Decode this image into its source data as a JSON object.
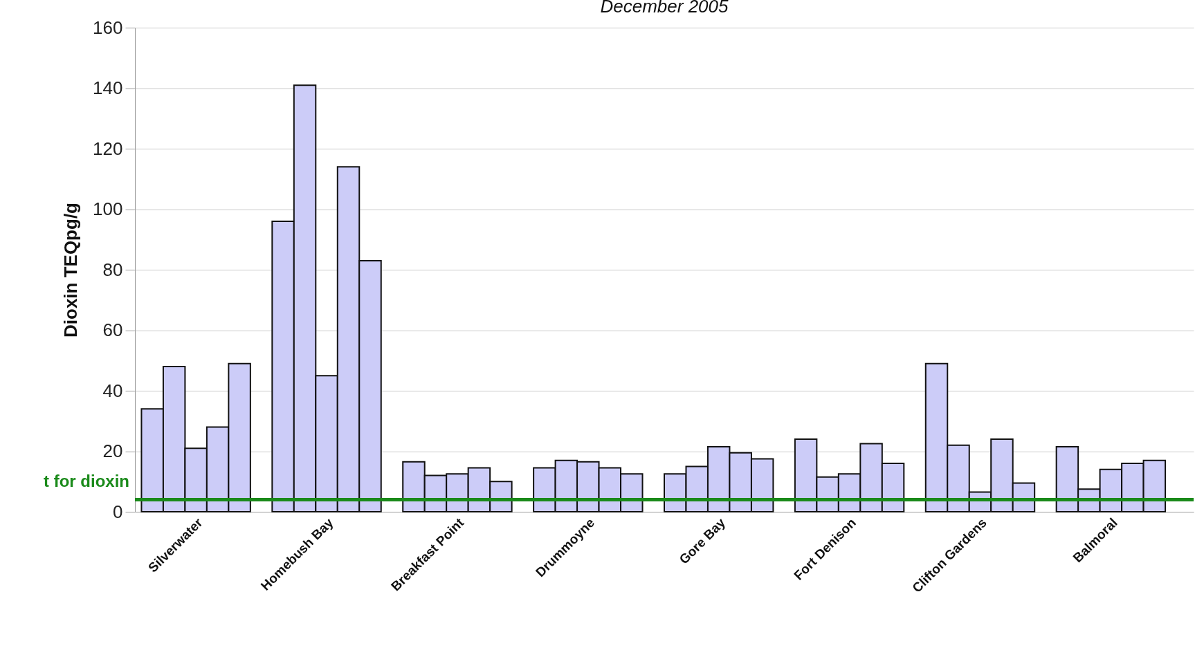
{
  "chart_data": {
    "type": "bar",
    "title": "December 2005",
    "ylabel": "Dioxin TEQpg/g",
    "categories": [
      null,
      null,
      "Silverwater",
      null,
      null,
      null,
      null,
      null,
      "Homebush Bay",
      null,
      null,
      null,
      null,
      null,
      "Breakfast Point",
      null,
      null,
      null,
      null,
      null,
      "Drummoyne",
      null,
      null,
      null,
      null,
      null,
      "Gore Bay",
      null,
      null,
      null,
      null,
      null,
      "Fort Denison",
      null,
      null,
      null,
      null,
      null,
      "Clifton Gardens",
      null,
      null,
      null,
      null,
      null,
      "Balmoral",
      null,
      null,
      null
    ],
    "values": [
      34,
      48,
      21,
      28,
      49,
      null,
      96,
      141,
      45,
      114,
      83,
      null,
      16.5,
      12,
      12.5,
      14.5,
      10,
      null,
      14.5,
      17,
      16.5,
      14.5,
      12.5,
      null,
      12.5,
      15,
      21.5,
      19.5,
      17.5,
      null,
      24,
      11.5,
      12.5,
      22.5,
      16,
      null,
      49,
      22,
      6.5,
      24,
      9.5,
      null,
      21.5,
      7.5,
      14,
      16,
      17,
      null
    ],
    "color": "#ccccf8",
    "ylim": [
      0,
      160
    ],
    "yticks": [
      0,
      20,
      40,
      60,
      80,
      100,
      120,
      140,
      160
    ],
    "grid": "y",
    "ref_lines": [
      {
        "axis": "y",
        "value": 4,
        "label": "t for dioxin",
        "color": "#1a8a1a"
      }
    ]
  }
}
